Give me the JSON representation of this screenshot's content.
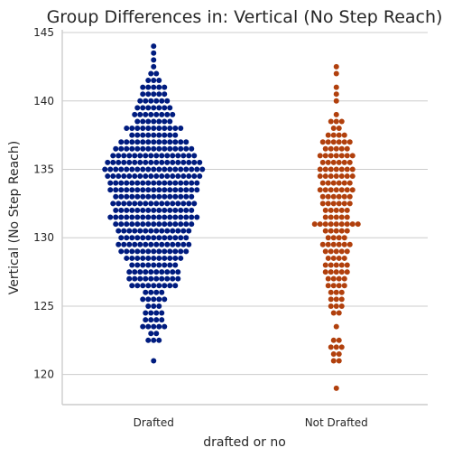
{
  "chart_data": {
    "type": "swarm",
    "title": "Group Differences in: Vertical (No Step Reach)",
    "xlabel": "drafted or no",
    "ylabel": "Vertical (No Step Reach)",
    "categories": [
      "Drafted",
      "Not Drafted"
    ],
    "ylim": [
      117.8,
      145.2
    ],
    "yticks": [
      120,
      125,
      130,
      135,
      140,
      145
    ],
    "grid": "horizontal",
    "colors": [
      "#001c7f",
      "#b1400d"
    ],
    "series": [
      {
        "counts": [
          [
            121,
            1
          ],
          [
            122.5,
            3
          ],
          [
            123,
            2
          ],
          [
            123.5,
            5
          ],
          [
            124,
            4
          ],
          [
            124.5,
            4
          ],
          [
            125,
            3
          ],
          [
            125.5,
            5
          ],
          [
            126,
            4
          ],
          [
            126.5,
            9
          ],
          [
            127,
            10
          ],
          [
            127.5,
            10
          ],
          [
            128,
            9
          ],
          [
            128.5,
            11
          ],
          [
            129,
            13
          ],
          [
            129.5,
            14
          ],
          [
            130,
            13
          ],
          [
            130.5,
            14
          ],
          [
            131,
            15
          ],
          [
            131.5,
            17
          ],
          [
            132,
            15
          ],
          [
            132.5,
            16
          ],
          [
            133,
            15
          ],
          [
            133.5,
            17
          ],
          [
            134,
            17
          ],
          [
            134.5,
            18
          ],
          [
            135,
            19
          ],
          [
            135.5,
            18
          ],
          [
            136,
            16
          ],
          [
            136.5,
            15
          ],
          [
            137,
            13
          ],
          [
            137.5,
            9
          ],
          [
            138,
            11
          ],
          [
            138.5,
            7
          ],
          [
            139,
            8
          ],
          [
            139.5,
            7
          ],
          [
            140,
            6
          ],
          [
            140.5,
            5
          ],
          [
            141,
            5
          ],
          [
            141.5,
            3
          ],
          [
            142,
            2
          ],
          [
            142.5,
            1
          ],
          [
            143,
            1
          ],
          [
            143.5,
            1
          ],
          [
            144,
            1
          ]
        ]
      },
      {
        "counts": [
          [
            119,
            1
          ],
          [
            121,
            2
          ],
          [
            121.5,
            2
          ],
          [
            122,
            3
          ],
          [
            122.5,
            2
          ],
          [
            123.5,
            1
          ],
          [
            124.5,
            2
          ],
          [
            125,
            3
          ],
          [
            125.5,
            3
          ],
          [
            126,
            3
          ],
          [
            126.5,
            4
          ],
          [
            127,
            4
          ],
          [
            127.5,
            5
          ],
          [
            128,
            5
          ],
          [
            128.5,
            4
          ],
          [
            129,
            5
          ],
          [
            129.5,
            6
          ],
          [
            130,
            4
          ],
          [
            130.5,
            5
          ],
          [
            131,
            9
          ],
          [
            131.5,
            5
          ],
          [
            132,
            5
          ],
          [
            132.5,
            6
          ],
          [
            133,
            6
          ],
          [
            133.5,
            7
          ],
          [
            134,
            6
          ],
          [
            134.5,
            7
          ],
          [
            135,
            7
          ],
          [
            135.5,
            6
          ],
          [
            136,
            7
          ],
          [
            136.5,
            5
          ],
          [
            137,
            6
          ],
          [
            137.5,
            4
          ],
          [
            138,
            2
          ],
          [
            138.5,
            3
          ],
          [
            139,
            1
          ],
          [
            140,
            1
          ],
          [
            140.5,
            1
          ],
          [
            141,
            1
          ],
          [
            142,
            1
          ],
          [
            142.5,
            1
          ]
        ]
      }
    ]
  }
}
